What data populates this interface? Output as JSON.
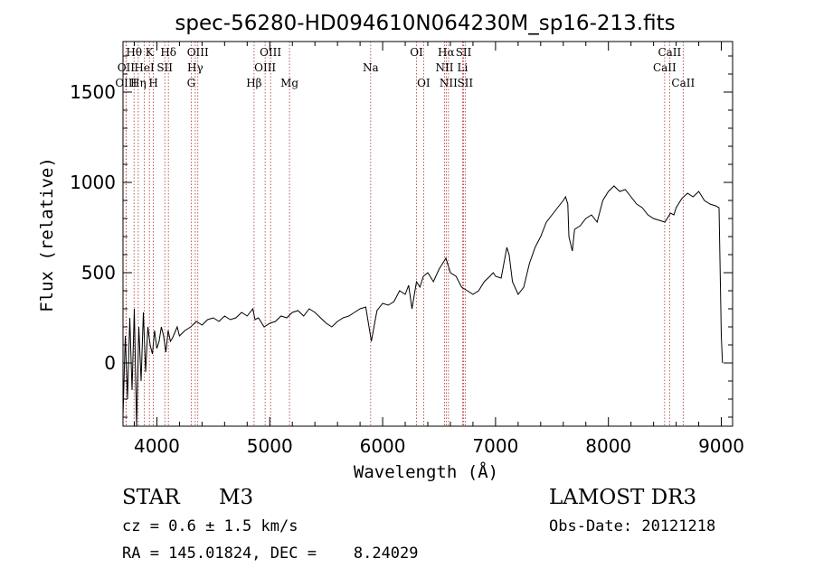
{
  "info": {
    "object_class": "STAR",
    "subclass": "M3",
    "survey": "LAMOST DR3",
    "cz": "cz = 0.6 ± 1.5 km/s",
    "obs_date": "Obs-Date: 20121218",
    "coords": "RA = 145.01824, DEC =    8.24029"
  },
  "chart_data": {
    "type": "line",
    "title": "spec-56280-HD094610N064230M_sp16-213.fits",
    "xlabel": "Wavelength (Å)",
    "ylabel": "Flux (relative)",
    "xlim": [
      3700,
      9100
    ],
    "ylim": [
      -350,
      1780
    ],
    "x_ticks": [
      4000,
      5000,
      6000,
      7000,
      8000,
      9000
    ],
    "y_ticks": [
      0,
      500,
      1000,
      1500
    ],
    "series": [
      {
        "name": "flux",
        "x": [
          3700,
          3720,
          3740,
          3760,
          3780,
          3800,
          3820,
          3840,
          3860,
          3880,
          3900,
          3920,
          3940,
          3960,
          3980,
          4000,
          4020,
          4040,
          4060,
          4080,
          4100,
          4120,
          4140,
          4160,
          4180,
          4200,
          4250,
          4300,
          4350,
          4400,
          4450,
          4500,
          4550,
          4600,
          4650,
          4700,
          4750,
          4800,
          4850,
          4870,
          4900,
          4950,
          5000,
          5050,
          5100,
          5150,
          5200,
          5250,
          5300,
          5350,
          5400,
          5450,
          5500,
          5550,
          5600,
          5650,
          5700,
          5750,
          5800,
          5850,
          5900,
          5950,
          6000,
          6050,
          6100,
          6150,
          6200,
          6230,
          6260,
          6300,
          6330,
          6360,
          6400,
          6450,
          6500,
          6540,
          6560,
          6580,
          6600,
          6650,
          6700,
          6750,
          6800,
          6850,
          6900,
          6950,
          6980,
          7000,
          7050,
          7100,
          7120,
          7150,
          7200,
          7250,
          7300,
          7350,
          7400,
          7450,
          7500,
          7550,
          7600,
          7620,
          7640,
          7650,
          7680,
          7700,
          7750,
          7800,
          7850,
          7900,
          7950,
          8000,
          8050,
          8100,
          8150,
          8200,
          8250,
          8300,
          8350,
          8400,
          8450,
          8500,
          8550,
          8580,
          8600,
          8650,
          8700,
          8750,
          8800,
          8850,
          8900,
          8950,
          8980,
          9000,
          9010
        ],
        "y": [
          -300,
          150,
          -200,
          250,
          -150,
          300,
          -350,
          200,
          -100,
          280,
          -50,
          200,
          100,
          50,
          180,
          80,
          120,
          200,
          150,
          60,
          180,
          120,
          140,
          170,
          200,
          150,
          180,
          200,
          230,
          210,
          240,
          250,
          230,
          260,
          240,
          250,
          280,
          260,
          300,
          240,
          250,
          200,
          220,
          230,
          260,
          250,
          280,
          290,
          260,
          300,
          280,
          250,
          220,
          200,
          230,
          250,
          260,
          280,
          300,
          310,
          120,
          290,
          330,
          320,
          340,
          400,
          380,
          430,
          300,
          450,
          420,
          480,
          500,
          450,
          520,
          560,
          580,
          540,
          500,
          480,
          420,
          400,
          380,
          400,
          450,
          480,
          500,
          480,
          470,
          640,
          600,
          450,
          380,
          420,
          550,
          640,
          700,
          780,
          820,
          860,
          900,
          920,
          880,
          700,
          620,
          740,
          760,
          800,
          820,
          780,
          900,
          950,
          980,
          950,
          960,
          920,
          880,
          860,
          820,
          800,
          790,
          780,
          830,
          820,
          860,
          910,
          940,
          920,
          950,
          900,
          880,
          870,
          860,
          150,
          0
        ]
      }
    ],
    "spectral_lines": [
      {
        "name": "Hθ",
        "wavelength": 3798,
        "row": 1
      },
      {
        "name": "OII",
        "wavelength": 3727,
        "row": 2
      },
      {
        "name": "OIII",
        "wavelength": 3727,
        "row": 3
      },
      {
        "name": "Hη",
        "wavelength": 3835,
        "row": 3
      },
      {
        "name": "K",
        "wavelength": 3934,
        "row": 1
      },
      {
        "name": "HeI",
        "wavelength": 3889,
        "row": 2
      },
      {
        "name": "H",
        "wavelength": 3969,
        "row": 3
      },
      {
        "name": "SII",
        "wavelength": 4070,
        "row": 2
      },
      {
        "name": "Hδ",
        "wavelength": 4102,
        "row": 1
      },
      {
        "name": "OIII",
        "wavelength": 4363,
        "row": 1
      },
      {
        "name": "Hγ",
        "wavelength": 4340,
        "row": 2
      },
      {
        "name": "G",
        "wavelength": 4304,
        "row": 3
      },
      {
        "name": "Hβ",
        "wavelength": 4861,
        "row": 3
      },
      {
        "name": "OIII",
        "wavelength": 5007,
        "row": 1
      },
      {
        "name": "OIII",
        "wavelength": 4959,
        "row": 2
      },
      {
        "name": "Mg",
        "wavelength": 5175,
        "row": 3
      },
      {
        "name": "Na",
        "wavelength": 5894,
        "row": 2
      },
      {
        "name": "OI",
        "wavelength": 6300,
        "row": 1
      },
      {
        "name": "OI",
        "wavelength": 6363,
        "row": 3
      },
      {
        "name": "Hα",
        "wavelength": 6563,
        "row": 1
      },
      {
        "name": "NII",
        "wavelength": 6548,
        "row": 2
      },
      {
        "name": "NII",
        "wavelength": 6583,
        "row": 3
      },
      {
        "name": "SII",
        "wavelength": 6717,
        "row": 1
      },
      {
        "name": "Li",
        "wavelength": 6708,
        "row": 2
      },
      {
        "name": "SII",
        "wavelength": 6731,
        "row": 3
      },
      {
        "name": "CaII",
        "wavelength": 8542,
        "row": 1
      },
      {
        "name": "CaII",
        "wavelength": 8498,
        "row": 2
      },
      {
        "name": "CaII",
        "wavelength": 8662,
        "row": 3
      }
    ]
  }
}
